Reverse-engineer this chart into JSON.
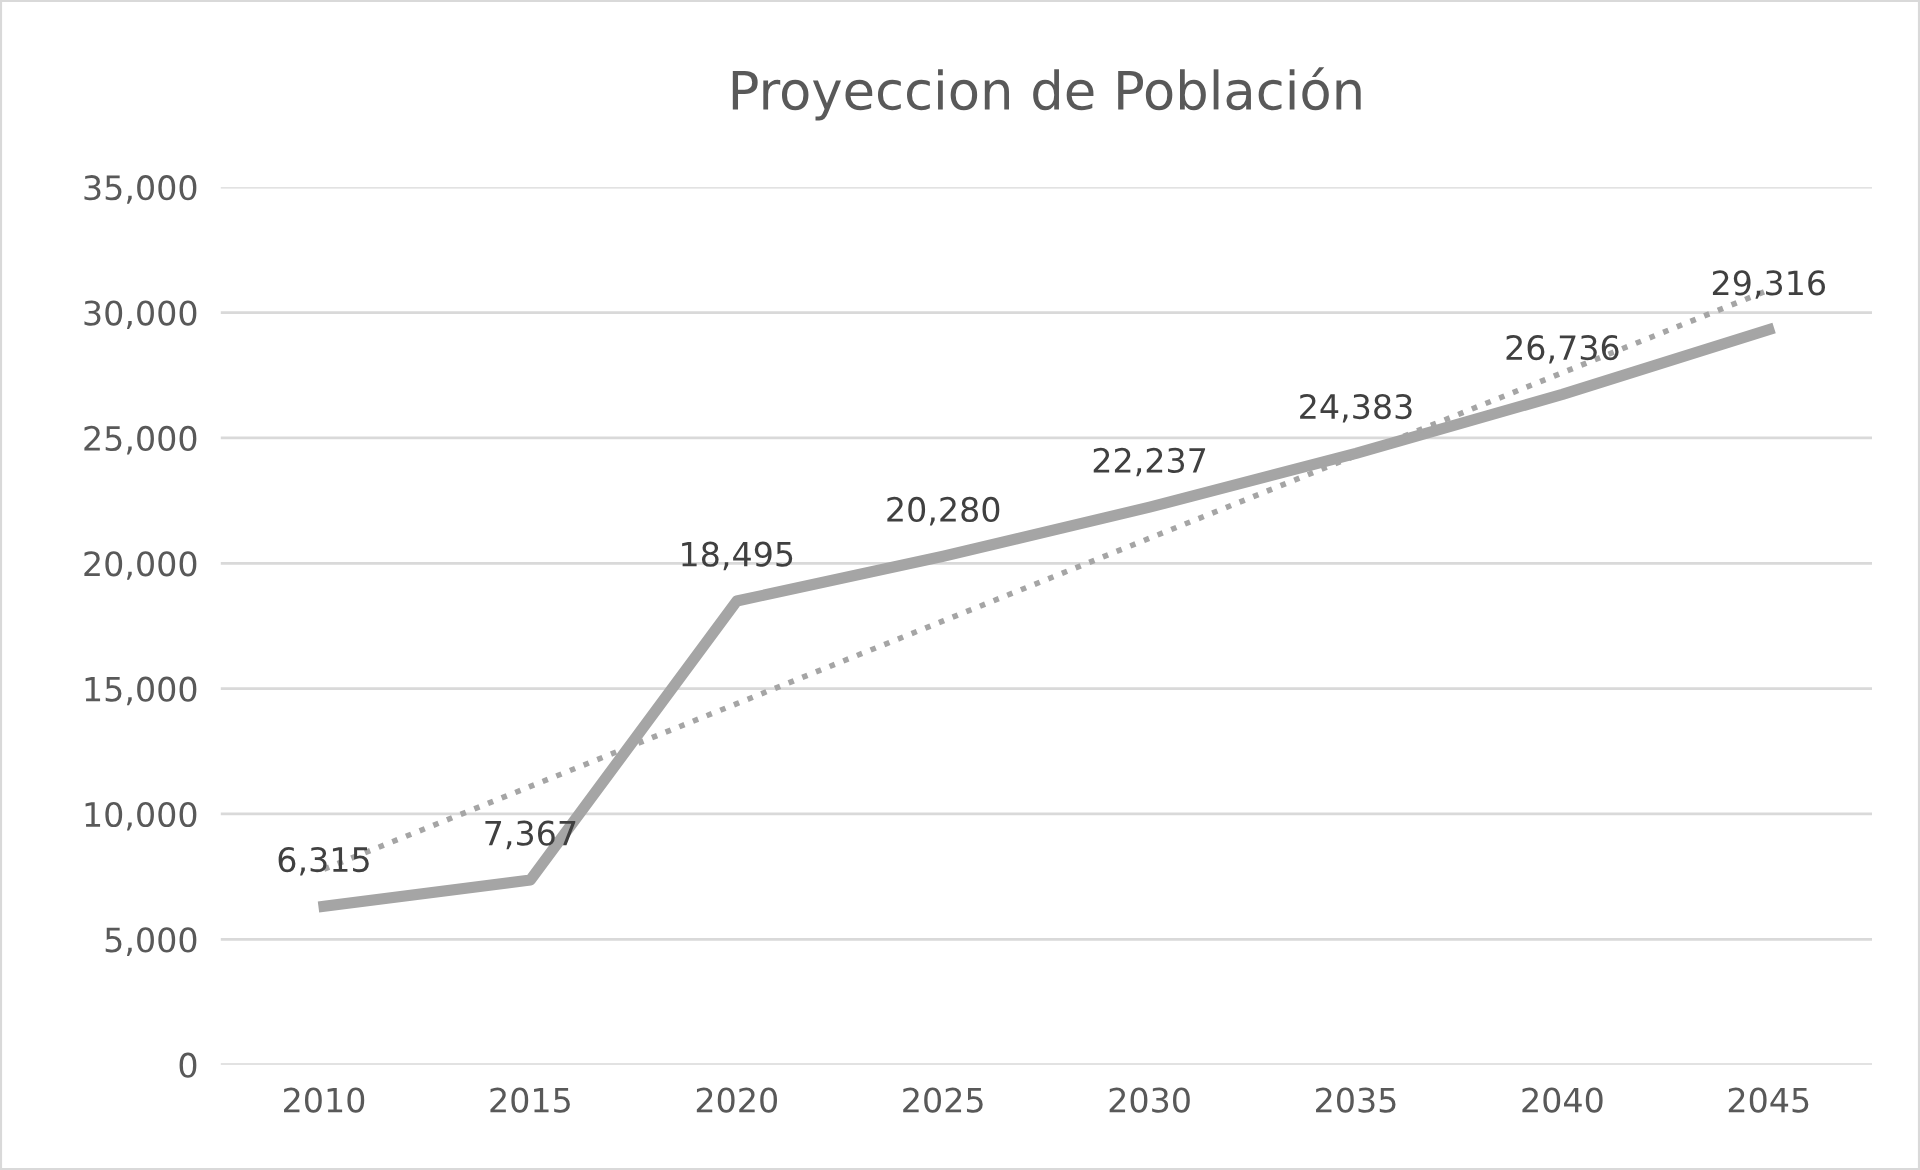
{
  "chart_data": {
    "type": "line",
    "title": "Proyeccion de Población",
    "categories": [
      "2010",
      "2015",
      "2020",
      "2025",
      "2030",
      "2035",
      "2040",
      "2045"
    ],
    "series": [
      {
        "color": "#a5a5a5",
        "values": [
          6315,
          7367,
          18495,
          20280,
          22237,
          24383,
          26736,
          29316
        ],
        "value_labels": [
          "6,315",
          "7,367",
          "18,495",
          "20,280",
          "22,237",
          "24,383",
          "26,736",
          "29,316"
        ]
      },
      {
        "type": "line",
        "values": [
          7800,
          11100,
          14400,
          17700,
          21000,
          24300,
          27600,
          30900
        ],
        "color": "#a5a5a5",
        "line_style": "dotted"
      }
    ],
    "ylim": [
      0,
      35000
    ],
    "yticks": [
      0,
      {
        "value": 5000,
        "label": "5,000"
      },
      {
        "value": 10000,
        "label": "10,000"
      },
      {
        "value": 15000,
        "label": "15,000"
      },
      {
        "value": 20000,
        "label": "20,000"
      },
      {
        "value": 25000,
        "label": "25,000"
      },
      {
        "value": 30000,
        "label": "30,000"
      },
      {
        "value": 35000,
        "label": "35,000"
      }
    ],
    "grid": "y",
    "legend": false,
    "marker": "none"
  }
}
